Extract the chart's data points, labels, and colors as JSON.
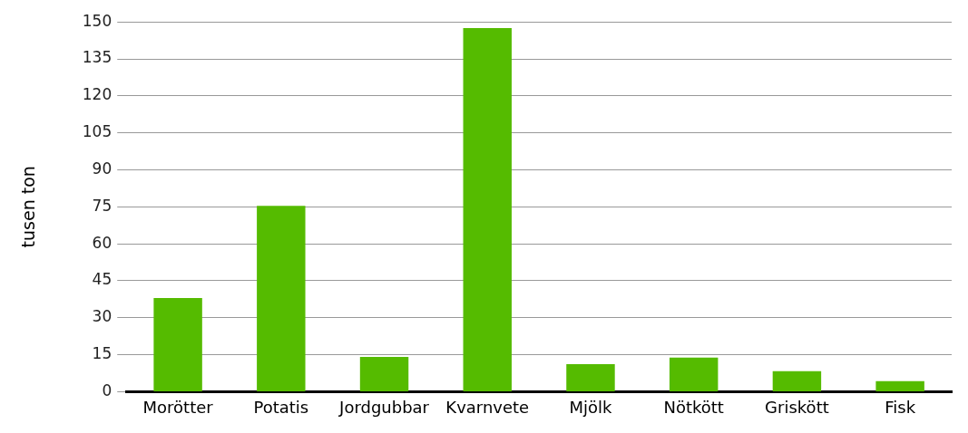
{
  "chart_data": {
    "type": "bar",
    "ylabel": "tusen ton",
    "categories": [
      "Morötter",
      "Potatis",
      "Jordgubbar",
      "Kvarnvete",
      "Mjölk",
      "Nötkött",
      "Griskött",
      "Fisk"
    ],
    "values": [
      38,
      75.4,
      14.1,
      147.5,
      11.2,
      13.8,
      8.3,
      4.3
    ],
    "color": "#55bb00",
    "ylim": [
      0,
      150
    ],
    "yticks": [
      0,
      15,
      30,
      45,
      60,
      75,
      90,
      105,
      120,
      135,
      150
    ],
    "grid": "y",
    "legend": false
  }
}
